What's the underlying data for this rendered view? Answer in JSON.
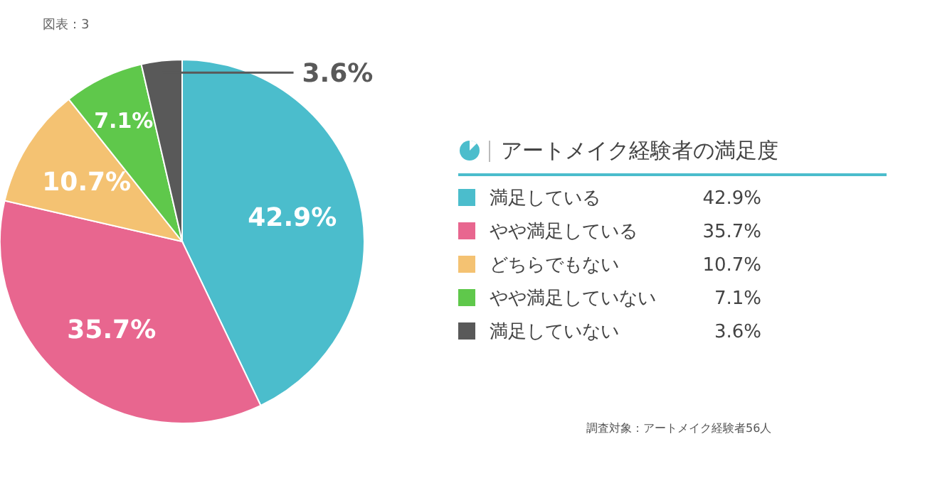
{
  "chart_data": {
    "type": "pie",
    "title": "アートメイク経験者の満足度",
    "categories": [
      "満足している",
      "やや満足している",
      "どちらでもない",
      "やや満足していない",
      "満足していない"
    ],
    "values": [
      42.9,
      35.7,
      10.7,
      7.1,
      3.6
    ],
    "value_labels": [
      "42.9%",
      "35.7%",
      "10.7%",
      "7.1%",
      "3.6%"
    ],
    "colors": [
      "#4bbdcc",
      "#e8668f",
      "#f4c272",
      "#5fc84b",
      "#595959"
    ],
    "legend": "right",
    "annotations": [
      "図表：3",
      "調査対象：アートメイク経験者56人"
    ]
  }
}
